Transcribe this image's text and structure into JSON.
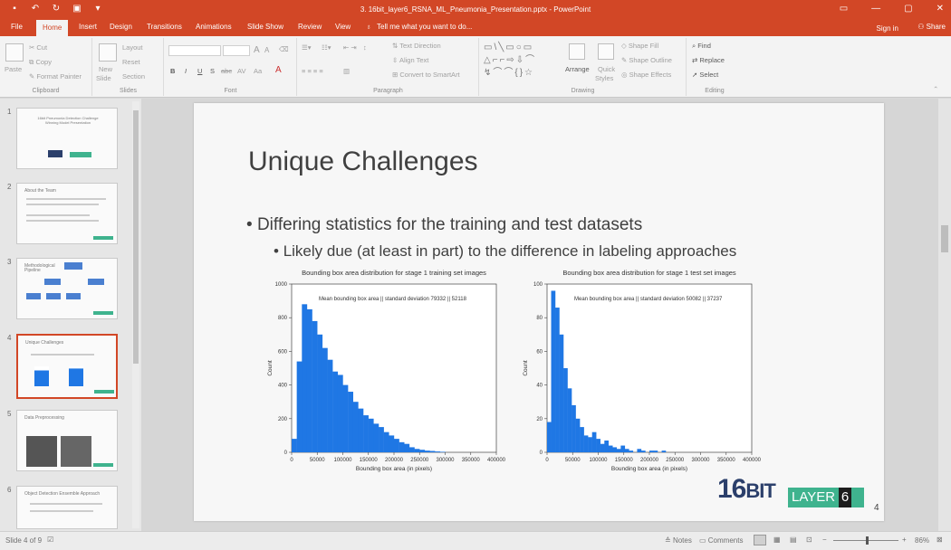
{
  "window": {
    "title": "3. 16bit_layer6_RSNA_ML_Pneumonia_Presentation.pptx - PowerPoint",
    "accent": "#d24726"
  },
  "menu": {
    "tabs": [
      "File",
      "Home",
      "Insert",
      "Design",
      "Transitions",
      "Animations",
      "Slide Show",
      "Review",
      "View"
    ],
    "tell_me": "Tell me what you want to do...",
    "sign_in": "Sign in",
    "share": "Share"
  },
  "ribbon": {
    "clipboard": {
      "paste": "Paste",
      "cut": "Cut",
      "copy": "Copy",
      "format_painter": "Format Painter",
      "label": "Clipboard"
    },
    "slides": {
      "new_slide": "New",
      "new_slide2": "Slide",
      "layout": "Layout",
      "reset": "Reset",
      "section": "Section",
      "label": "Slides"
    },
    "font": {
      "bold": "B",
      "italic": "I",
      "underline": "U",
      "shadow": "S",
      "strike": "abc",
      "spacing": "AV",
      "case": "Aa",
      "grow": "A",
      "shrink": "A",
      "label": "Font"
    },
    "paragraph": {
      "text_direction": "Text Direction",
      "align_text": "Align Text",
      "smartart": "Convert to SmartArt",
      "label": "Paragraph"
    },
    "drawing": {
      "arrange": "Arrange",
      "quick_styles": "Quick",
      "quick_styles2": "Styles",
      "shape_fill": "Shape Fill",
      "shape_outline": "Shape Outline",
      "shape_effects": "Shape Effects",
      "label": "Drawing"
    },
    "editing": {
      "find": "Find",
      "replace": "Replace",
      "select": "Select",
      "label": "Editing"
    }
  },
  "thumbnails": [
    {
      "num": "1",
      "text": "16bit Pneumonia Detection Challenge Winning Model Presentation"
    },
    {
      "num": "2",
      "text": "About the Team"
    },
    {
      "num": "3",
      "text": "Methodological Pipeline"
    },
    {
      "num": "4",
      "text": "Unique Challenges"
    },
    {
      "num": "5",
      "text": "Data Preprocessing"
    },
    {
      "num": "6",
      "text": "Object Detection Ensemble Approach"
    }
  ],
  "slide": {
    "title": "Unique Challenges",
    "bullet1": "Differing statistics for the training and test datasets",
    "bullet2": "Likely due (at least in part) to the difference in labeling approaches",
    "logo_16": "16",
    "logo_bit": "BIT",
    "logo_layer": "LAYER",
    "logo_six": "6",
    "page_number": "4"
  },
  "chart_data": [
    {
      "type": "bar",
      "title": "Bounding box area distribution for stage 1 training set images",
      "annotation": "Mean bounding box area || standard deviation 79332 || 52118",
      "xlabel": "Bounding box area (in pixels)",
      "ylabel": "Count",
      "xlim": [
        0,
        400000
      ],
      "ylim": [
        0,
        1000
      ],
      "xticks": [
        "0",
        "50000",
        "100000",
        "150000",
        "200000",
        "250000",
        "300000",
        "350000",
        "400000"
      ],
      "yticks": [
        "0",
        "200",
        "400",
        "600",
        "800",
        "1000"
      ],
      "color": "#1f77e4",
      "bin_width": 10000,
      "values": [
        80,
        540,
        880,
        850,
        780,
        700,
        620,
        550,
        480,
        460,
        400,
        360,
        300,
        260,
        220,
        200,
        170,
        150,
        120,
        100,
        80,
        60,
        50,
        30,
        20,
        15,
        10,
        8,
        5,
        3
      ]
    },
    {
      "type": "bar",
      "title": "Bounding box area distribution for stage 1 test set images",
      "annotation": "Mean bounding box area || standard deviation 50082 || 37237",
      "xlabel": "Bounding box area (in pixels)",
      "ylabel": "Count",
      "xlim": [
        0,
        400000
      ],
      "ylim": [
        0,
        100
      ],
      "xticks": [
        "0",
        "50000",
        "100000",
        "150000",
        "200000",
        "250000",
        "300000",
        "350000",
        "400000"
      ],
      "yticks": [
        "0",
        "20",
        "40",
        "60",
        "80",
        "100"
      ],
      "color": "#1f77e4",
      "bin_width": 8000,
      "values": [
        18,
        96,
        86,
        70,
        50,
        38,
        28,
        20,
        15,
        10,
        9,
        12,
        8,
        5,
        7,
        4,
        3,
        2,
        4,
        2,
        1,
        0,
        2,
        1,
        0,
        1,
        1,
        0,
        1,
        0
      ]
    }
  ],
  "status": {
    "slide_of": "Slide 4 of 9",
    "notes": "Notes",
    "comments": "Comments",
    "zoom": "86%"
  }
}
